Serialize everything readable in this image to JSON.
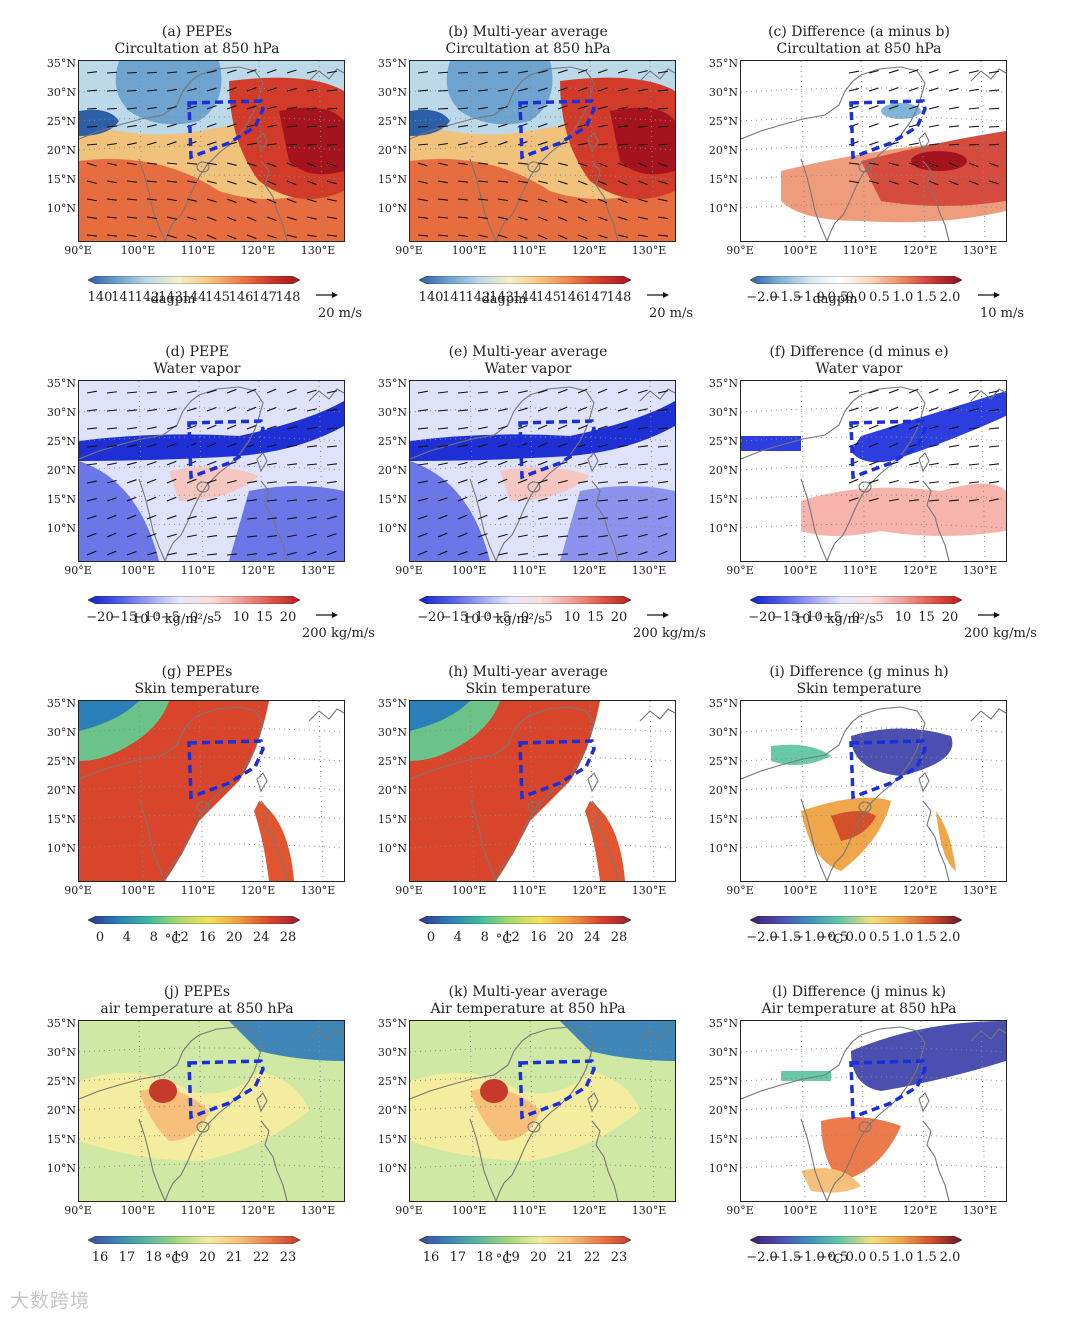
{
  "figure": {
    "watermark": "大数跨境",
    "lat_labels": [
      "35°N",
      "30°N",
      "25°N",
      "20°N",
      "15°N",
      "10°N"
    ],
    "lon_labels": [
      "90°E",
      "100°E",
      "110°E",
      "120°E",
      "130°E"
    ]
  },
  "chart_data": [
    {
      "type": "heatmap",
      "id": "a",
      "title": "(a) PEPEs",
      "subtitle": "Circultation at 850 hPa",
      "colorbar_ticks": [
        "140",
        "141",
        "142",
        "143",
        "144",
        "145",
        "146",
        "147",
        "148"
      ],
      "colorbar_unit": "dagpm",
      "vector_ref": "20 m/s",
      "scheme": "geo"
    },
    {
      "type": "heatmap",
      "id": "b",
      "title": "(b) Multi-year average",
      "subtitle": "Circultation at 850 hPa",
      "colorbar_ticks": [
        "140",
        "141",
        "142",
        "143",
        "144",
        "145",
        "146",
        "147",
        "148"
      ],
      "colorbar_unit": "dagpm",
      "vector_ref": "20 m/s",
      "scheme": "geo"
    },
    {
      "type": "heatmap",
      "id": "c",
      "title": "(c) Difference (a minus b)",
      "subtitle": "Circultation at 850 hPa",
      "colorbar_ticks": [
        "−2.0",
        "−1.5",
        "−1.0",
        "−0.5",
        "0.0",
        "0.5",
        "1.0",
        "1.5",
        "2.0"
      ],
      "colorbar_unit": "dagpm",
      "vector_ref": "10 m/s",
      "scheme": "geodiff"
    },
    {
      "type": "heatmap",
      "id": "d",
      "title": "(d) PEPE",
      "subtitle": "Water vapor",
      "colorbar_ticks": [
        "−20",
        "−15",
        "−10",
        "−5",
        "0",
        "5",
        "10",
        "15",
        "20"
      ],
      "colorbar_unit": "10⁻⁵ kg/m²/s",
      "vector_ref": "200 kg/m/s",
      "scheme": "wv"
    },
    {
      "type": "heatmap",
      "id": "e",
      "title": "(e) Multi-year average",
      "subtitle": "Water vapor",
      "colorbar_ticks": [
        "−20",
        "−15",
        "−10",
        "−5",
        "0",
        "5",
        "10",
        "15",
        "20"
      ],
      "colorbar_unit": "10⁻⁵ kg/m²/s",
      "vector_ref": "200 kg/m/s",
      "scheme": "wv2"
    },
    {
      "type": "heatmap",
      "id": "f",
      "title": "(f) Difference (d minus e)",
      "subtitle": "Water vapor",
      "colorbar_ticks": [
        "−20",
        "−15",
        "−10",
        "−5",
        "0",
        "5",
        "10",
        "15",
        "20"
      ],
      "colorbar_unit": "10⁻⁵ kg/m²/s",
      "vector_ref": "200 kg/m/s",
      "scheme": "wvdiff"
    },
    {
      "type": "heatmap",
      "id": "g",
      "title": "(g) PEPEs",
      "subtitle": "Skin temperature",
      "colorbar_ticks": [
        "0",
        "4",
        "8",
        "12",
        "16",
        "20",
        "24",
        "28"
      ],
      "colorbar_unit": "°C",
      "vector_ref": "",
      "scheme": "skin"
    },
    {
      "type": "heatmap",
      "id": "h",
      "title": "(h) Multi-year average",
      "subtitle": "Skin temperature",
      "colorbar_ticks": [
        "0",
        "4",
        "8",
        "12",
        "16",
        "20",
        "24",
        "28"
      ],
      "colorbar_unit": "°C",
      "vector_ref": "",
      "scheme": "skin"
    },
    {
      "type": "heatmap",
      "id": "i",
      "title": "(i) Difference (g minus h)",
      "subtitle": "Skin temperature",
      "colorbar_ticks": [
        "−2.0",
        "−1.5",
        "−1.0",
        "−0.5",
        "0.0",
        "0.5",
        "1.0",
        "1.5",
        "2.0"
      ],
      "colorbar_unit": "°C",
      "vector_ref": "",
      "scheme": "skindiff"
    },
    {
      "type": "heatmap",
      "id": "j",
      "title": "(j) PEPEs",
      "subtitle": "air temperature at 850 hPa",
      "colorbar_ticks": [
        "16",
        "17",
        "18",
        "19",
        "20",
        "21",
        "22",
        "23"
      ],
      "colorbar_unit": "°C",
      "vector_ref": "",
      "scheme": "air"
    },
    {
      "type": "heatmap",
      "id": "k",
      "title": "(k) Multi-year average",
      "subtitle": "Air temperature at 850 hPa",
      "colorbar_ticks": [
        "16",
        "17",
        "18",
        "19",
        "20",
        "21",
        "22",
        "23"
      ],
      "colorbar_unit": "°C",
      "vector_ref": "",
      "scheme": "air"
    },
    {
      "type": "heatmap",
      "id": "l",
      "title": "(l) Difference (j minus k)",
      "subtitle": "Air temperature at 850 hPa",
      "colorbar_ticks": [
        "−2.0",
        "−1.5",
        "−1.0",
        "−0.5",
        "0.0",
        "0.5",
        "1.0",
        "1.5",
        "2.0"
      ],
      "colorbar_unit": "°C",
      "vector_ref": "",
      "scheme": "airdiff"
    }
  ]
}
